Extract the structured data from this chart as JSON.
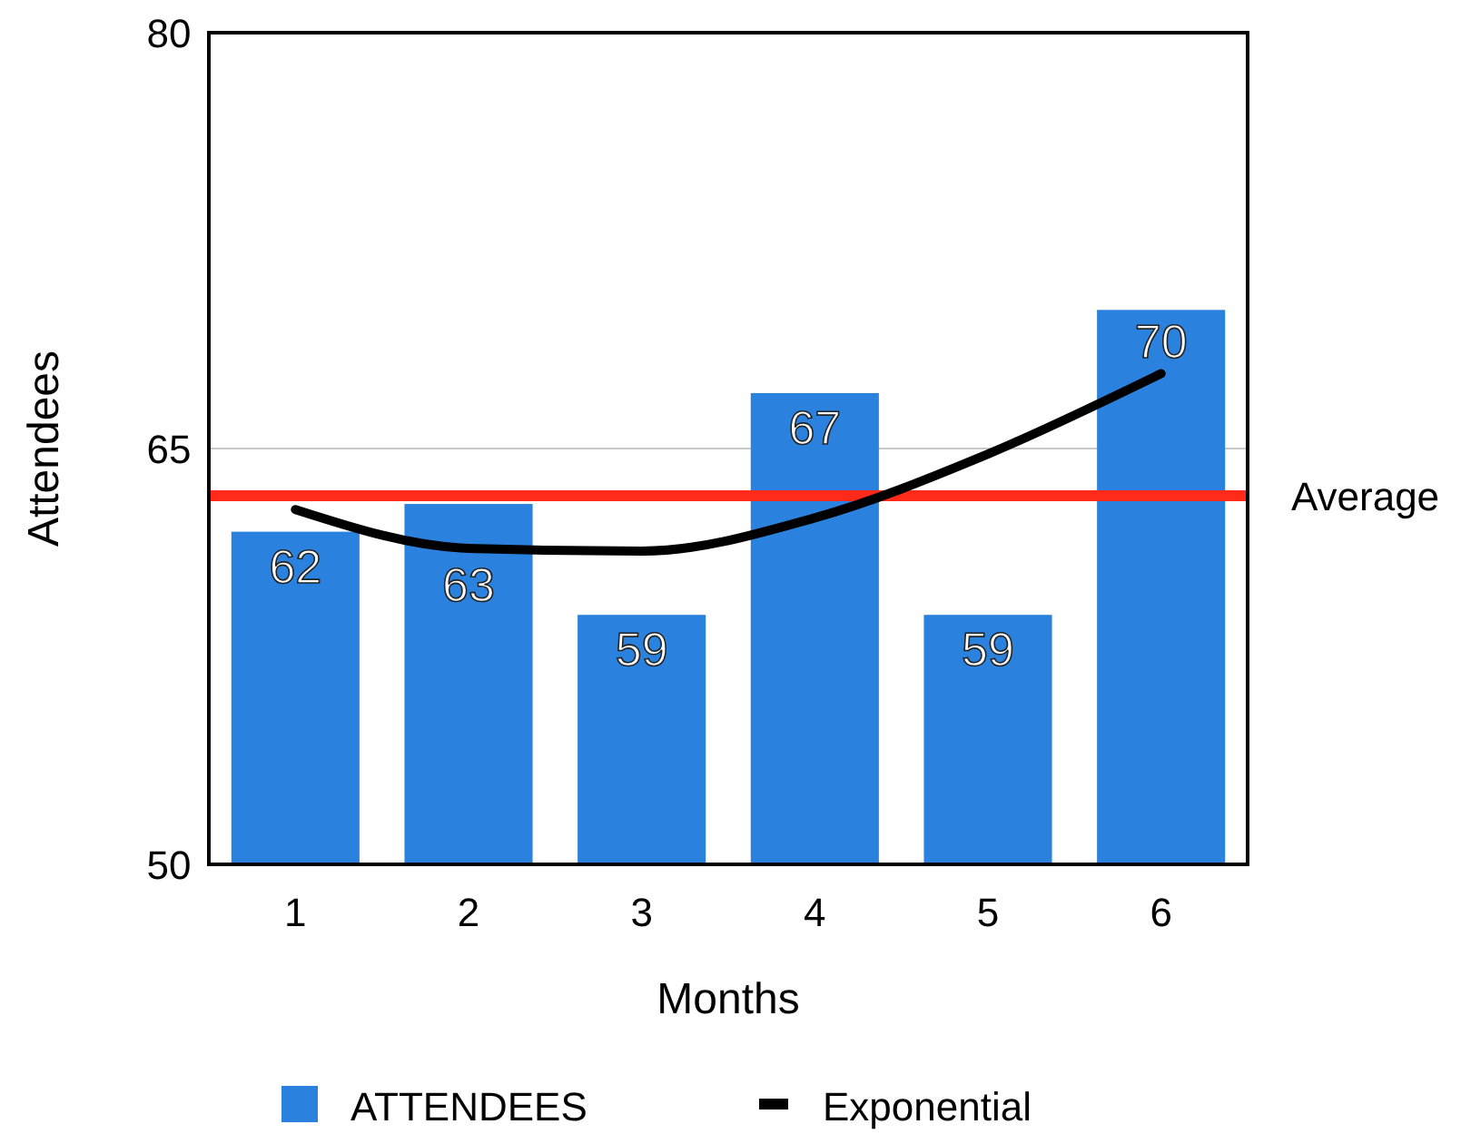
{
  "chart_data": {
    "type": "bar",
    "xlabel": "Months",
    "ylabel": "Attendees",
    "categories": [
      "1",
      "2",
      "3",
      "4",
      "5",
      "6"
    ],
    "series": [
      {
        "name": "ATTENDEES",
        "color": "#2b82de",
        "values": [
          62,
          63,
          59,
          67,
          59,
          70
        ],
        "value_labels": [
          "62",
          "63",
          "59",
          "67",
          "59",
          "70"
        ]
      },
      {
        "name": "Exponential",
        "type": "line",
        "color": "#000000",
        "values": [
          62.8,
          61.4,
          61.3,
          62.5,
          64.8,
          67.7
        ]
      }
    ],
    "ylim": [
      50,
      80
    ],
    "yticks": [
      50,
      65,
      80
    ],
    "grid": "y",
    "legend": "bottom",
    "ref_lines": [
      {
        "axis": "y",
        "value": 63.3,
        "label": "Average",
        "color": "#ff2a1a"
      }
    ]
  }
}
